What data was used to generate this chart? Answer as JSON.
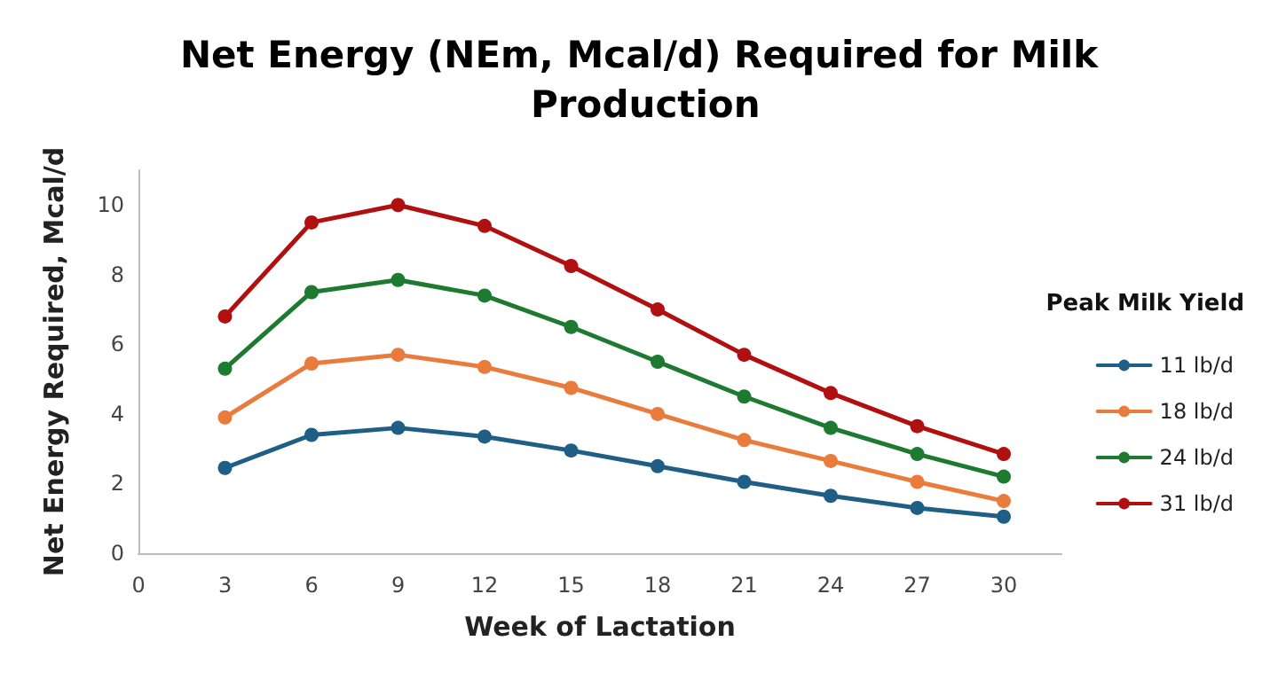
{
  "chart_data": {
    "type": "line",
    "title": "Net Energy (NEm, Mcal/d) Required for Milk Production",
    "xlabel": "Week of Lactation",
    "ylabel": "Net Energy Required, Mcal/d",
    "legend_title": "Peak Milk Yield",
    "x": [
      3,
      6,
      9,
      12,
      15,
      18,
      21,
      24,
      27,
      30
    ],
    "series": [
      {
        "name": "11 lb/d",
        "color": "#1f5f85",
        "values": [
          2.45,
          3.4,
          3.6,
          3.35,
          2.95,
          2.5,
          2.05,
          1.65,
          1.3,
          1.05
        ]
      },
      {
        "name": "18 lb/d",
        "color": "#e97c3c",
        "values": [
          3.9,
          5.45,
          5.7,
          5.35,
          4.75,
          4.0,
          3.25,
          2.65,
          2.05,
          1.5
        ]
      },
      {
        "name": "24 lb/d",
        "color": "#1e7a30",
        "values": [
          5.3,
          7.5,
          7.85,
          7.4,
          6.5,
          5.5,
          4.5,
          3.6,
          2.85,
          2.2
        ]
      },
      {
        "name": "31 lb/d",
        "color": "#b01010",
        "values": [
          6.8,
          9.5,
          10.0,
          9.4,
          8.25,
          7.0,
          5.7,
          4.6,
          3.65,
          2.85
        ]
      }
    ],
    "xlim": [
      0,
      32
    ],
    "xticks": [
      0,
      3,
      6,
      9,
      12,
      15,
      18,
      21,
      24,
      27,
      30
    ],
    "ylim": [
      0,
      11
    ],
    "yticks": [
      0,
      2,
      4,
      6,
      8,
      10
    ],
    "grid": false,
    "legend": "right",
    "marker": "circle",
    "line_style": "solid"
  }
}
